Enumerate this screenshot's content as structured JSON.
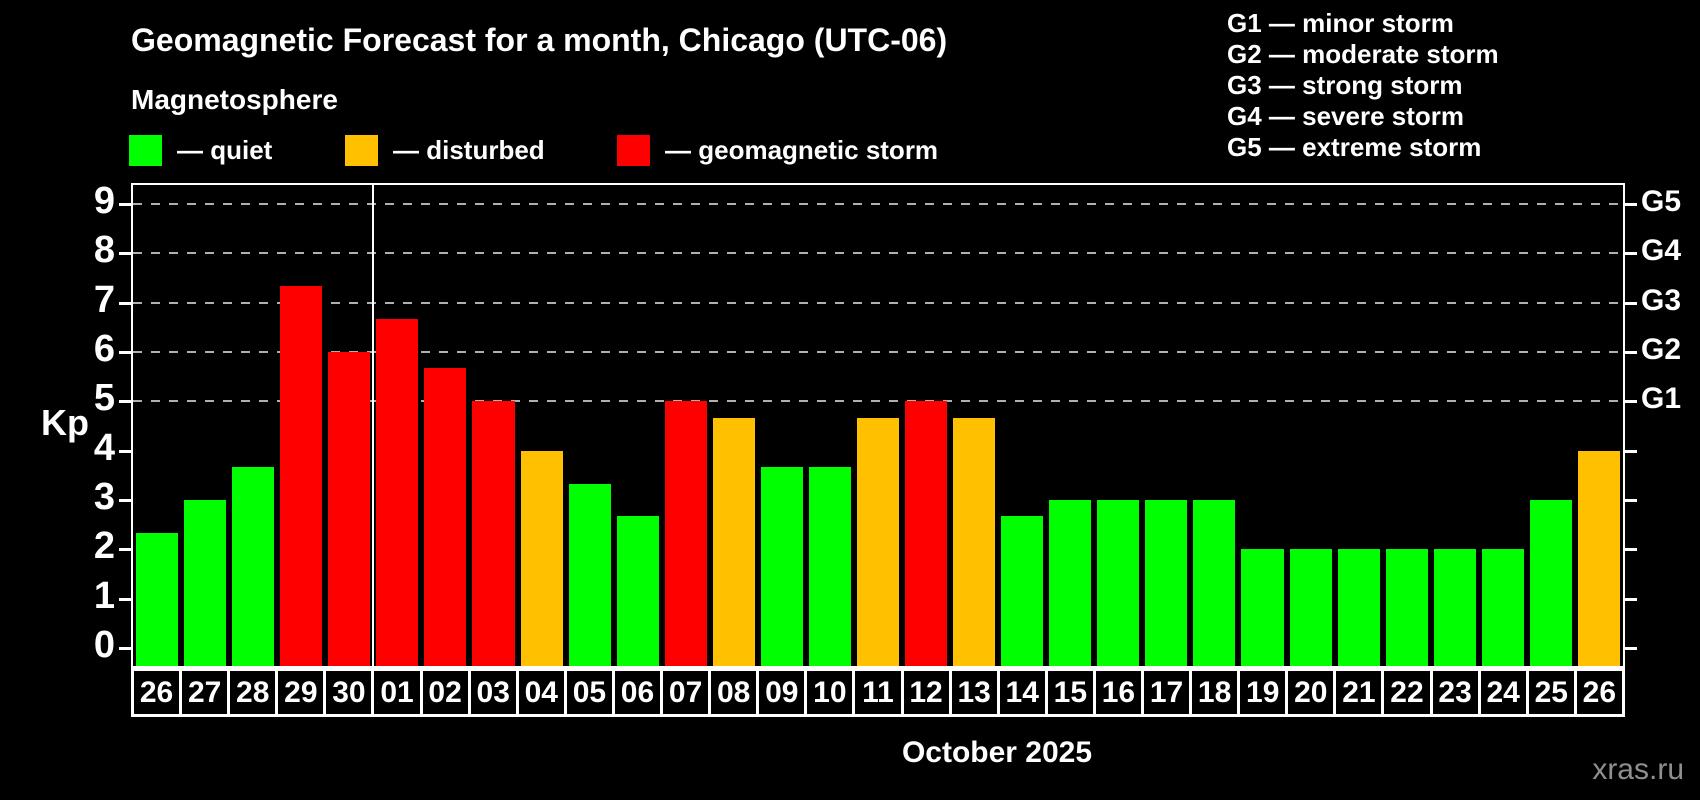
{
  "header": {
    "title": "Geomagnetic Forecast for a month, Chicago (UTC-06)",
    "subtitle": "Magnetosphere"
  },
  "legend": {
    "items": [
      {
        "key": "quiet",
        "label": "— quiet",
        "color": "#00ff00"
      },
      {
        "key": "disturbed",
        "label": "— disturbed",
        "color": "#ffc000"
      },
      {
        "key": "storm",
        "label": "— geomagnetic storm",
        "color": "#ff0000"
      }
    ]
  },
  "g_scale_legend": {
    "items": [
      "G1 — minor storm",
      "G2 — moderate storm",
      "G3 — strong storm",
      "G4 — severe storm",
      "G5 — extreme storm"
    ]
  },
  "chart_data": {
    "type": "bar",
    "title": "Geomagnetic Forecast for a month, Chicago (UTC-06)",
    "ylabel": "Kp",
    "xlabel": "October 2025",
    "ylim": [
      -0.36,
      9.38
    ],
    "yticks": [
      0,
      1,
      2,
      3,
      4,
      5,
      6,
      7,
      8,
      9
    ],
    "gridlines_at": [
      5,
      6,
      7,
      8,
      9
    ],
    "grid": "horizontal dashed lines at storm levels G1–G5 only",
    "right_axis_labels": [
      {
        "value": 5,
        "label": "G1"
      },
      {
        "value": 6,
        "label": "G2"
      },
      {
        "value": 7,
        "label": "G3"
      },
      {
        "value": 8,
        "label": "G4"
      },
      {
        "value": 9,
        "label": "G5"
      }
    ],
    "month_boundary_after_index": 4,
    "categories": [
      "26",
      "27",
      "28",
      "29",
      "30",
      "01",
      "02",
      "03",
      "04",
      "05",
      "06",
      "07",
      "08",
      "09",
      "10",
      "11",
      "12",
      "13",
      "14",
      "15",
      "16",
      "17",
      "18",
      "19",
      "20",
      "21",
      "22",
      "23",
      "24",
      "25",
      "26"
    ],
    "values": [
      2.33,
      3,
      3.67,
      7.33,
      6,
      6.67,
      5.67,
      5,
      4,
      3.33,
      2.67,
      5,
      4.67,
      3.67,
      3.67,
      4.67,
      5,
      4.67,
      2.67,
      3,
      3,
      3,
      3,
      2,
      2,
      2,
      2,
      2,
      2,
      3,
      4
    ],
    "statuses": [
      "quiet",
      "quiet",
      "quiet",
      "storm",
      "storm",
      "storm",
      "storm",
      "storm",
      "disturbed",
      "quiet",
      "quiet",
      "storm",
      "disturbed",
      "quiet",
      "quiet",
      "disturbed",
      "storm",
      "disturbed",
      "quiet",
      "quiet",
      "quiet",
      "quiet",
      "quiet",
      "quiet",
      "quiet",
      "quiet",
      "quiet",
      "quiet",
      "quiet",
      "quiet",
      "disturbed"
    ]
  },
  "footer": {
    "month_label": "October 2025",
    "watermark": "xras.ru"
  },
  "colors": {
    "background": "#000000",
    "bar_quiet": "#00ff00",
    "bar_disturbed": "#ffc000",
    "bar_storm": "#ff0000",
    "grid": "#b0b0b0",
    "axis": "#ffffff",
    "watermark": "#8f8f8f"
  }
}
